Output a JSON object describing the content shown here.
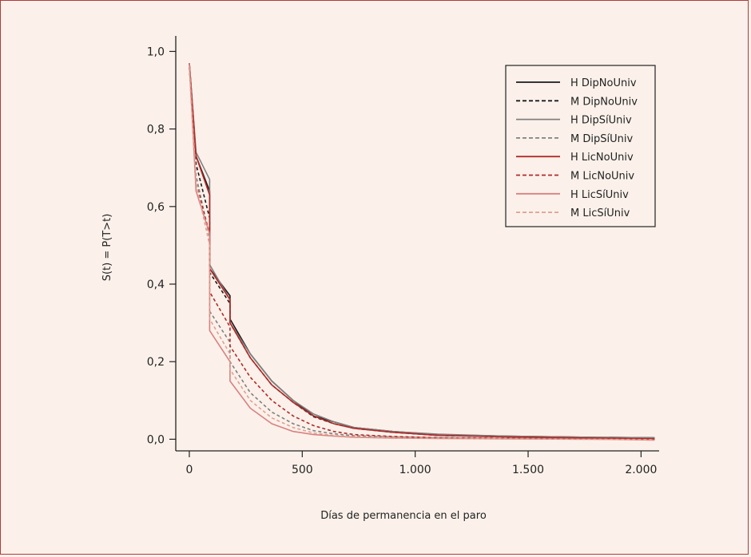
{
  "chart_data": {
    "type": "line",
    "xlabel": "Días de permanencia en el paro",
    "ylabel": "S(t) = P(T>t)",
    "xlim": [
      -60,
      2080
    ],
    "ylim": [
      -0.03,
      1.04
    ],
    "xticks": [
      0,
      500,
      1000,
      1500,
      2000
    ],
    "xtick_labels": [
      "0",
      "500",
      "1.000",
      "1.500",
      "2.000"
    ],
    "yticks": [
      0.0,
      0.2,
      0.4,
      0.6,
      0.8,
      1.0
    ],
    "ytick_labels": [
      "0,0",
      "0,2",
      "0,4",
      "0,6",
      "0,8",
      "1,0"
    ],
    "legend_position": "top-right",
    "grid": false,
    "series": [
      {
        "name": "H DipNoUniv",
        "color": "#1a1a1a",
        "dash": "solid",
        "x": [
          0,
          30,
          90,
          90,
          180,
          180,
          270,
          365,
          460,
          550,
          640,
          730,
          900,
          1100,
          1400,
          1800,
          2060
        ],
        "y": [
          0.97,
          0.73,
          0.64,
          0.44,
          0.37,
          0.31,
          0.22,
          0.15,
          0.1,
          0.06,
          0.045,
          0.03,
          0.02,
          0.012,
          0.008,
          0.005,
          0.004
        ]
      },
      {
        "name": "M DipNoUniv",
        "color": "#1a1a1a",
        "dash": "dashed",
        "x": [
          0,
          30,
          90,
          90,
          180,
          180,
          270,
          365,
          460,
          550,
          640,
          730,
          900,
          1100,
          1400,
          1800,
          2060
        ],
        "y": [
          0.96,
          0.71,
          0.57,
          0.43,
          0.35,
          0.3,
          0.21,
          0.14,
          0.095,
          0.058,
          0.04,
          0.028,
          0.018,
          0.01,
          0.006,
          0.003,
          0.001
        ]
      },
      {
        "name": "H DipSíUniv",
        "color": "#808080",
        "dash": "solid",
        "x": [
          0,
          30,
          90,
          90,
          180,
          180,
          270,
          365,
          460,
          550,
          640,
          730,
          900,
          1100,
          1400,
          1800,
          2060
        ],
        "y": [
          0.97,
          0.74,
          0.67,
          0.45,
          0.36,
          0.3,
          0.22,
          0.15,
          0.1,
          0.065,
          0.045,
          0.03,
          0.02,
          0.013,
          0.008,
          0.005,
          0.004
        ]
      },
      {
        "name": "M DipSíUniv",
        "color": "#808080",
        "dash": "dashed",
        "x": [
          0,
          30,
          90,
          90,
          180,
          180,
          270,
          365,
          460,
          550,
          640,
          730,
          900,
          1100,
          1400,
          1800,
          2060
        ],
        "y": [
          0.96,
          0.68,
          0.52,
          0.33,
          0.25,
          0.2,
          0.12,
          0.07,
          0.04,
          0.022,
          0.014,
          0.009,
          0.006,
          0.004,
          0.002,
          0.001,
          0.0
        ]
      },
      {
        "name": "H LicNoUniv",
        "color": "#b22a2a",
        "dash": "solid",
        "x": [
          0,
          30,
          90,
          90,
          180,
          180,
          270,
          365,
          460,
          550,
          640,
          730,
          900,
          1100,
          1400,
          1800,
          2060
        ],
        "y": [
          0.97,
          0.73,
          0.63,
          0.44,
          0.36,
          0.3,
          0.21,
          0.14,
          0.095,
          0.06,
          0.04,
          0.028,
          0.018,
          0.01,
          0.006,
          0.003,
          0.001
        ]
      },
      {
        "name": "M LicNoUniv",
        "color": "#b22a2a",
        "dash": "dashed",
        "x": [
          0,
          30,
          90,
          90,
          180,
          180,
          270,
          365,
          460,
          550,
          640,
          730,
          900,
          1100,
          1400,
          1800,
          2060
        ],
        "y": [
          0.96,
          0.66,
          0.53,
          0.38,
          0.29,
          0.24,
          0.16,
          0.1,
          0.06,
          0.035,
          0.02,
          0.012,
          0.007,
          0.004,
          0.002,
          0.001,
          0.0
        ]
      },
      {
        "name": "H LicSíUniv",
        "color": "#d98080",
        "dash": "solid",
        "x": [
          0,
          30,
          90,
          90,
          180,
          180,
          270,
          365,
          460,
          550,
          640,
          730,
          900,
          1100,
          1400,
          1800,
          2060
        ],
        "y": [
          0.97,
          0.64,
          0.53,
          0.28,
          0.2,
          0.15,
          0.08,
          0.04,
          0.02,
          0.012,
          0.008,
          0.005,
          0.003,
          0.002,
          0.001,
          0.0,
          -0.002
        ]
      },
      {
        "name": "M LicSíUniv",
        "color": "#e0a090",
        "dash": "dashed",
        "x": [
          0,
          30,
          90,
          90,
          180,
          180,
          270,
          365,
          460,
          550,
          640,
          730,
          900,
          1100,
          1400,
          1800,
          2060
        ],
        "y": [
          0.96,
          0.66,
          0.5,
          0.31,
          0.22,
          0.18,
          0.1,
          0.055,
          0.03,
          0.016,
          0.01,
          0.006,
          0.004,
          0.002,
          0.001,
          0.0,
          -0.001
        ]
      }
    ]
  }
}
